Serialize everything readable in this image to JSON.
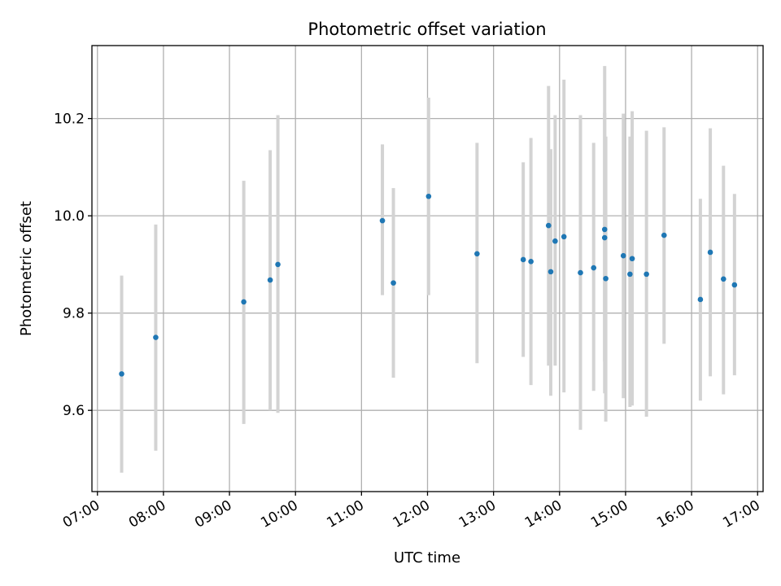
{
  "chart_data": {
    "type": "scatter",
    "title": "Photometric offset variation",
    "xlabel": "UTC time",
    "ylabel": "Photometric offset",
    "xlim": [
      "06:55",
      "17:05"
    ],
    "ylim": [
      9.433,
      10.35
    ],
    "grid": true,
    "x_ticks": [
      "07:00",
      "08:00",
      "09:00",
      "10:00",
      "11:00",
      "12:00",
      "13:00",
      "14:00",
      "15:00",
      "16:00",
      "17:00"
    ],
    "y_ticks": [
      9.6,
      9.8,
      10.0,
      10.2
    ],
    "y_tick_labels": [
      "9.6",
      "9.8",
      "10.0",
      "10.2"
    ],
    "colors": {
      "point": "#1f77b4",
      "error_bar": "#d3d3d3"
    },
    "series": [
      {
        "points": [
          {
            "x": "07:22",
            "y": 9.675,
            "ylo": 9.472,
            "yhi": 9.877
          },
          {
            "x": "07:53",
            "y": 9.75,
            "ylo": 9.517,
            "yhi": 9.982
          },
          {
            "x": "09:13",
            "y": 9.823,
            "ylo": 9.572,
            "yhi": 10.072
          },
          {
            "x": "09:37",
            "y": 9.868,
            "ylo": 9.6,
            "yhi": 10.135
          },
          {
            "x": "09:44",
            "y": 9.9,
            "ylo": 9.595,
            "yhi": 10.207
          },
          {
            "x": "11:19",
            "y": 9.99,
            "ylo": 9.837,
            "yhi": 10.147
          },
          {
            "x": "11:29",
            "y": 9.862,
            "ylo": 9.667,
            "yhi": 10.057
          },
          {
            "x": "12:01",
            "y": 10.04,
            "ylo": 9.837,
            "yhi": 10.243
          },
          {
            "x": "12:45",
            "y": 9.922,
            "ylo": 9.697,
            "yhi": 10.15
          },
          {
            "x": "13:27",
            "y": 9.91,
            "ylo": 9.71,
            "yhi": 10.11
          },
          {
            "x": "13:34",
            "y": 9.906,
            "ylo": 9.652,
            "yhi": 10.16
          },
          {
            "x": "13:50",
            "y": 9.98,
            "ylo": 9.692,
            "yhi": 10.267
          },
          {
            "x": "13:52",
            "y": 9.885,
            "ylo": 9.63,
            "yhi": 10.137
          },
          {
            "x": "13:56",
            "y": 9.948,
            "ylo": 9.692,
            "yhi": 10.207
          },
          {
            "x": "14:04",
            "y": 9.957,
            "ylo": 9.637,
            "yhi": 10.28
          },
          {
            "x": "14:19",
            "y": 9.883,
            "ylo": 9.56,
            "yhi": 10.207
          },
          {
            "x": "14:31",
            "y": 9.893,
            "ylo": 9.64,
            "yhi": 10.15
          },
          {
            "x": "14:41",
            "y": 9.972,
            "ylo": 9.635,
            "yhi": 10.308
          },
          {
            "x": "14:41",
            "y": 9.955,
            "ylo": 9.7,
            "yhi": 10.212
          },
          {
            "x": "14:42",
            "y": 9.871,
            "ylo": 9.577,
            "yhi": 10.163
          },
          {
            "x": "14:58",
            "y": 9.918,
            "ylo": 9.625,
            "yhi": 10.21
          },
          {
            "x": "15:04",
            "y": 9.88,
            "ylo": 9.607,
            "yhi": 10.163
          },
          {
            "x": "15:06",
            "y": 9.912,
            "ylo": 9.61,
            "yhi": 10.215
          },
          {
            "x": "15:19",
            "y": 9.88,
            "ylo": 9.587,
            "yhi": 10.175
          },
          {
            "x": "15:35",
            "y": 9.96,
            "ylo": 9.737,
            "yhi": 10.182
          },
          {
            "x": "16:08",
            "y": 9.828,
            "ylo": 9.62,
            "yhi": 10.035
          },
          {
            "x": "16:17",
            "y": 9.925,
            "ylo": 9.67,
            "yhi": 10.18
          },
          {
            "x": "16:29",
            "y": 9.87,
            "ylo": 9.633,
            "yhi": 10.103
          },
          {
            "x": "16:39",
            "y": 9.858,
            "ylo": 9.672,
            "yhi": 10.045
          }
        ]
      }
    ]
  }
}
